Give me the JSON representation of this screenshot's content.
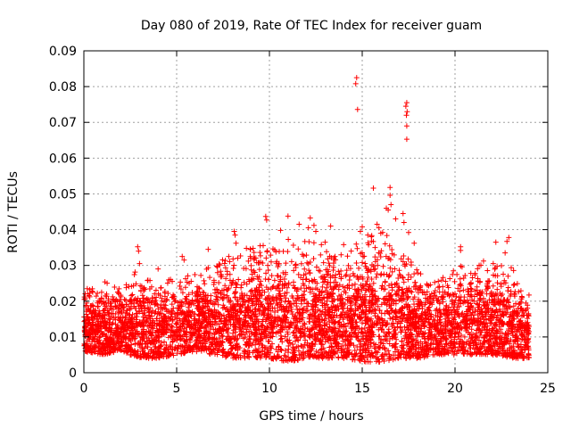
{
  "chart_data": {
    "type": "scatter",
    "title": "Day 080 of 2019, Rate Of TEC Index for receiver guam",
    "xlabel": "GPS time / hours",
    "ylabel": "ROTI / TECUs",
    "xlim": [
      0,
      25
    ],
    "ylim": [
      0,
      0.09
    ],
    "x_ticks": [
      "0",
      "5",
      "10",
      "15",
      "20",
      "25"
    ],
    "y_ticks": [
      "0",
      "0.01",
      "0.02",
      "0.03",
      "0.04",
      "0.05",
      "0.06",
      "0.07",
      "0.08",
      "0.09"
    ],
    "x_tick_values": [
      0,
      5,
      10,
      15,
      20,
      25
    ],
    "y_tick_values": [
      0,
      0.01,
      0.02,
      0.03,
      0.04,
      0.05,
      0.06,
      0.07,
      0.08,
      0.09
    ],
    "grid": true,
    "marker": "plus",
    "color": "#ff0000",
    "band": {
      "x": [
        0,
        1,
        2,
        3,
        4,
        5,
        6,
        7,
        8,
        9,
        10,
        11,
        12,
        13,
        14,
        15,
        16,
        17,
        18,
        19,
        20,
        21,
        22,
        23,
        24
      ],
      "low": [
        0.006,
        0.005,
        0.006,
        0.004,
        0.004,
        0.005,
        0.006,
        0.005,
        0.004,
        0.004,
        0.004,
        0.003,
        0.004,
        0.004,
        0.004,
        0.003,
        0.003,
        0.004,
        0.004,
        0.005,
        0.005,
        0.005,
        0.005,
        0.004,
        0.004
      ],
      "high": [
        0.024,
        0.026,
        0.025,
        0.03,
        0.028,
        0.027,
        0.028,
        0.03,
        0.034,
        0.036,
        0.037,
        0.038,
        0.038,
        0.034,
        0.033,
        0.038,
        0.04,
        0.036,
        0.03,
        0.028,
        0.03,
        0.031,
        0.032,
        0.03,
        0.022
      ]
    },
    "outliers": [
      {
        "x": 14.7,
        "y": 0.0825
      },
      {
        "x": 14.65,
        "y": 0.0808
      },
      {
        "x": 14.75,
        "y": 0.0736
      },
      {
        "x": 17.4,
        "y": 0.0755
      },
      {
        "x": 17.35,
        "y": 0.0745
      },
      {
        "x": 17.42,
        "y": 0.073
      },
      {
        "x": 17.38,
        "y": 0.072
      },
      {
        "x": 17.4,
        "y": 0.069
      },
      {
        "x": 17.4,
        "y": 0.0653
      },
      {
        "x": 15.6,
        "y": 0.0516
      },
      {
        "x": 16.5,
        "y": 0.0518
      },
      {
        "x": 16.5,
        "y": 0.0496
      },
      {
        "x": 16.55,
        "y": 0.047
      },
      {
        "x": 16.3,
        "y": 0.046
      },
      {
        "x": 16.4,
        "y": 0.0455
      },
      {
        "x": 17.2,
        "y": 0.0445
      },
      {
        "x": 17.25,
        "y": 0.042
      },
      {
        "x": 16.8,
        "y": 0.043
      },
      {
        "x": 11.0,
        "y": 0.0438
      },
      {
        "x": 12.2,
        "y": 0.0433
      },
      {
        "x": 9.8,
        "y": 0.0437
      },
      {
        "x": 9.85,
        "y": 0.0427
      },
      {
        "x": 11.6,
        "y": 0.0415
      },
      {
        "x": 12.1,
        "y": 0.0405
      },
      {
        "x": 12.4,
        "y": 0.0412
      },
      {
        "x": 13.3,
        "y": 0.041
      },
      {
        "x": 10.6,
        "y": 0.0398
      },
      {
        "x": 12.5,
        "y": 0.0395
      },
      {
        "x": 15.8,
        "y": 0.0415
      },
      {
        "x": 15.9,
        "y": 0.0405
      },
      {
        "x": 15.0,
        "y": 0.0408
      },
      {
        "x": 16.0,
        "y": 0.039
      },
      {
        "x": 15.3,
        "y": 0.0385
      },
      {
        "x": 8.1,
        "y": 0.0395
      },
      {
        "x": 8.15,
        "y": 0.0385
      },
      {
        "x": 8.2,
        "y": 0.0362
      },
      {
        "x": 17.5,
        "y": 0.0392
      },
      {
        "x": 14.9,
        "y": 0.0395
      },
      {
        "x": 16.1,
        "y": 0.0392
      },
      {
        "x": 13.0,
        "y": 0.0365
      },
      {
        "x": 14.0,
        "y": 0.0358
      },
      {
        "x": 15.5,
        "y": 0.0368
      },
      {
        "x": 22.9,
        "y": 0.0378
      },
      {
        "x": 22.8,
        "y": 0.0367
      },
      {
        "x": 22.2,
        "y": 0.0365
      },
      {
        "x": 20.3,
        "y": 0.0352
      },
      {
        "x": 20.3,
        "y": 0.0342
      },
      {
        "x": 22.7,
        "y": 0.0335
      },
      {
        "x": 2.9,
        "y": 0.0352
      },
      {
        "x": 2.95,
        "y": 0.034
      },
      {
        "x": 6.7,
        "y": 0.0345
      },
      {
        "x": 17.8,
        "y": 0.0362
      },
      {
        "x": 9.5,
        "y": 0.0355
      },
      {
        "x": 12.8,
        "y": 0.0358
      },
      {
        "x": 5.3,
        "y": 0.0325
      },
      {
        "x": 5.4,
        "y": 0.0315
      },
      {
        "x": 7.2,
        "y": 0.0295
      },
      {
        "x": 21.3,
        "y": 0.03
      },
      {
        "x": 4.0,
        "y": 0.029
      },
      {
        "x": 3.0,
        "y": 0.0305
      }
    ],
    "point_count": 5200,
    "seed": 80
  }
}
